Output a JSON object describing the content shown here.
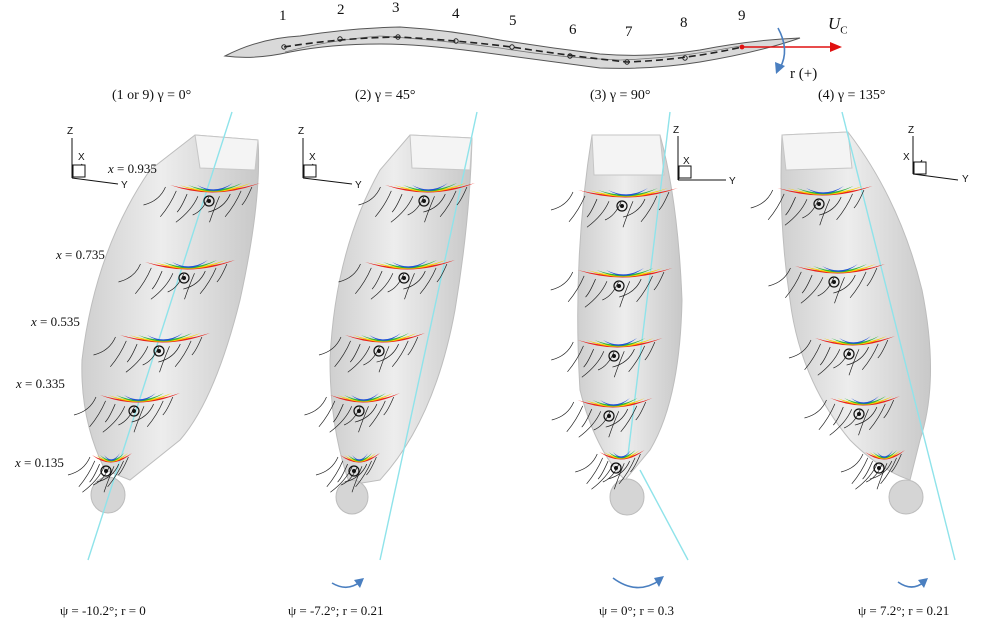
{
  "strip": {
    "numbers": [
      "1",
      "2",
      "3",
      "4",
      "5",
      "6",
      "7",
      "8",
      "9"
    ],
    "velocity_label": "U",
    "velocity_sub": "C",
    "rotation_label": "r (+)"
  },
  "panels": [
    {
      "title": "(1 or 9) γ = 0°",
      "psi": "ψ = -10.2°; r = 0"
    },
    {
      "title": "(2) γ = 45°",
      "psi": "ψ = -7.2°; r = 0.21"
    },
    {
      "title": "(3) γ = 90°",
      "psi": "ψ = 0°; r = 0.3"
    },
    {
      "title": "(4) γ = 135°",
      "psi": "ψ = 7.2°; r = 0.21"
    }
  ],
  "stations": [
    {
      "var": "x",
      "value": " = 0.935"
    },
    {
      "var": "x",
      "value": " = 0.735"
    },
    {
      "var": "x",
      "value": " = 0.535"
    },
    {
      "var": "x",
      "value": " = 0.335"
    },
    {
      "var": "x",
      "value": " = 0.135"
    }
  ],
  "axes": {
    "z": "Z",
    "x": "X",
    "y": "Y"
  },
  "colors": {
    "hull": "#e2e2e2",
    "centerline": "#8fe3ea",
    "velocity_arrow": "#e01010",
    "rotation_arrow": "#4a7fc0",
    "vortex_hot": "#e8231b",
    "vortex_mid": "#f6d200",
    "vortex_cool": "#2bb43a",
    "vortex_cold": "#1e4fd8"
  }
}
